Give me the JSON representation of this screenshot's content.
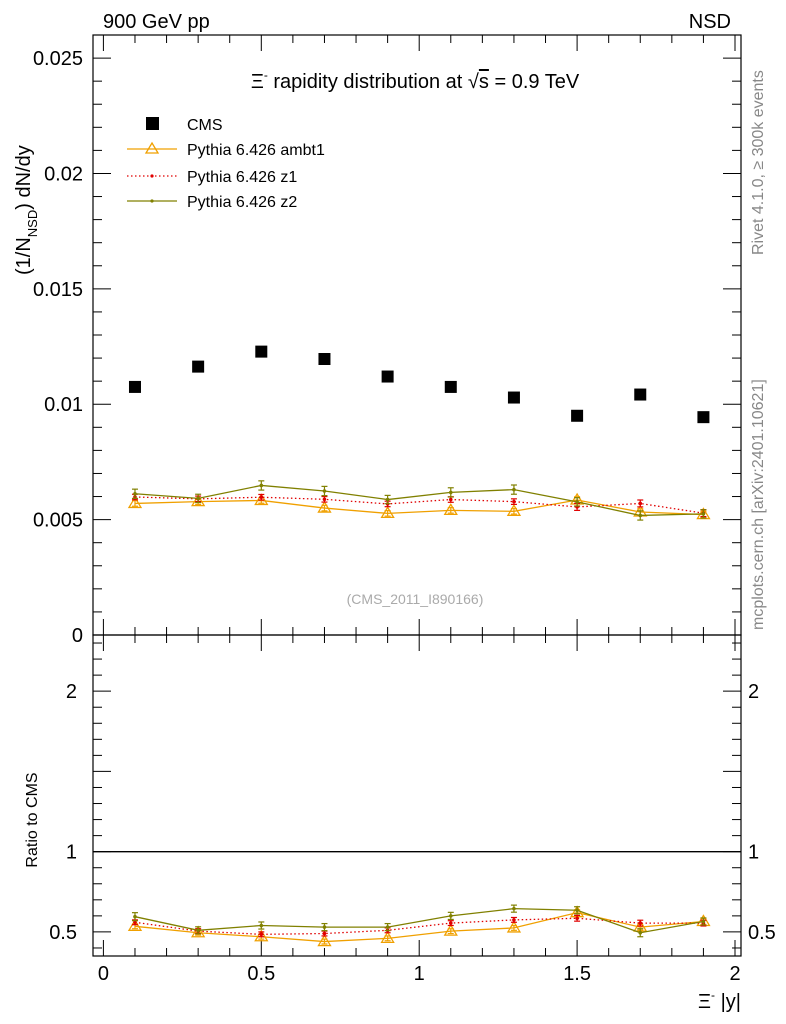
{
  "header": {
    "left": "900 GeV pp",
    "right": "NSD"
  },
  "side_labels": {
    "rivet": "Rivet 4.1.0, ≥ 300k events",
    "mcplots": "mcplots.cern.ch [arXiv:2401.10621]"
  },
  "chart_data": [
    {
      "type": "scatter",
      "title": "Ξ⁻ rapidity distribution at √s = 0.9 TeV",
      "title_prefix": "Ξ",
      "title_sup": "-",
      "title_mid": " rapidity distribution at ",
      "title_sqrt": "√",
      "title_s": "s",
      "title_suffix": " = 0.9 TeV",
      "ylabel": "(1/N_NSD) dN/dy",
      "ylabel_main": "(1/N",
      "ylabel_sub": "NSD",
      "ylabel_end": ") dN/dy",
      "watermark": "(CMS_2011_I890166)",
      "xlim": [
        0,
        2
      ],
      "ylim": [
        0,
        0.026
      ],
      "yticks": [
        0,
        0.005,
        0.01,
        0.015,
        0.02,
        0.025
      ],
      "yticklabels": [
        "0",
        "0.005",
        "0.01",
        "0.015",
        "0.02",
        "0.025"
      ],
      "x": [
        0.1,
        0.3,
        0.5,
        0.7,
        0.9,
        1.1,
        1.3,
        1.5,
        1.7,
        1.9
      ],
      "series": [
        {
          "name": "CMS",
          "style": "marker",
          "color": "#000000",
          "values": [
            0.01075,
            0.01163,
            0.01228,
            0.01196,
            0.0112,
            0.01075,
            0.01029,
            0.0095,
            0.01042,
            0.00944
          ],
          "errors": [
            0,
            0,
            0,
            0,
            0,
            0,
            0,
            0,
            0,
            0
          ]
        },
        {
          "name": "Pythia 6.426 ambt1",
          "style": "triangle",
          "color": "#f0a000",
          "values": [
            0.0057,
            0.00578,
            0.00583,
            0.0055,
            0.00527,
            0.0054,
            0.00536,
            0.00585,
            0.00533,
            0.00522
          ],
          "errors": [
            0.00012,
            0.00012,
            0.00012,
            0.00012,
            0.00012,
            0.00012,
            0.00012,
            0.00014,
            0.00014,
            0.00014
          ]
        },
        {
          "name": "Pythia 6.426 z1",
          "style": "dotted",
          "color": "#e00000",
          "values": [
            0.00598,
            0.0059,
            0.00597,
            0.00588,
            0.00568,
            0.00587,
            0.00578,
            0.00555,
            0.0057,
            0.00528
          ],
          "errors": [
            0.00012,
            0.00012,
            0.00012,
            0.00012,
            0.00012,
            0.00012,
            0.00012,
            0.00015,
            0.00015,
            0.00015
          ]
        },
        {
          "name": "Pythia 6.426 z2",
          "style": "solid",
          "color": "#808000",
          "values": [
            0.00612,
            0.00592,
            0.00648,
            0.00624,
            0.00587,
            0.00618,
            0.0063,
            0.00577,
            0.00518,
            0.00525
          ],
          "errors": [
            0.0002,
            0.00018,
            0.0002,
            0.0002,
            0.00018,
            0.0002,
            0.0002,
            0.00018,
            0.0002,
            0.00018
          ]
        }
      ]
    },
    {
      "type": "line",
      "ylabel": "Ratio to CMS",
      "xlabel": "Ξ⁻ |y|",
      "xlabel_prefix": "Ξ",
      "xlabel_sup": "-",
      "xlabel_suffix": " |y|",
      "xlim": [
        0,
        2
      ],
      "ylim": [
        0.35,
        2.35
      ],
      "xticks": [
        0,
        0.5,
        1,
        1.5,
        2
      ],
      "xticklabels": [
        "0",
        "0.5",
        "1",
        "1.5",
        "2"
      ],
      "yticks": [
        0.5,
        1,
        2
      ],
      "yticklabels": [
        "0.5",
        "1",
        "2"
      ],
      "reference": 1,
      "x": [
        0.1,
        0.3,
        0.5,
        0.7,
        0.9,
        1.1,
        1.3,
        1.5,
        1.7,
        1.9
      ],
      "series": [
        {
          "name": "Pythia 6.426 ambt1",
          "style": "triangle",
          "color": "#f0a000",
          "values": [
            0.535,
            0.495,
            0.47,
            0.44,
            0.46,
            0.505,
            0.525,
            0.62,
            0.53,
            0.565
          ],
          "errors": [
            0.015,
            0.015,
            0.015,
            0.015,
            0.015,
            0.015,
            0.015,
            0.018,
            0.018,
            0.018
          ]
        },
        {
          "name": "Pythia 6.426 z1",
          "style": "dotted",
          "color": "#e00000",
          "values": [
            0.56,
            0.505,
            0.485,
            0.49,
            0.51,
            0.555,
            0.575,
            0.585,
            0.555,
            0.555
          ],
          "errors": [
            0.015,
            0.015,
            0.015,
            0.015,
            0.015,
            0.015,
            0.015,
            0.018,
            0.018,
            0.018
          ]
        },
        {
          "name": "Pythia 6.426 z2",
          "style": "solid",
          "color": "#808000",
          "values": [
            0.595,
            0.51,
            0.54,
            0.53,
            0.53,
            0.6,
            0.645,
            0.635,
            0.495,
            0.565
          ],
          "errors": [
            0.025,
            0.022,
            0.022,
            0.022,
            0.022,
            0.022,
            0.022,
            0.022,
            0.025,
            0.022
          ]
        }
      ]
    }
  ]
}
